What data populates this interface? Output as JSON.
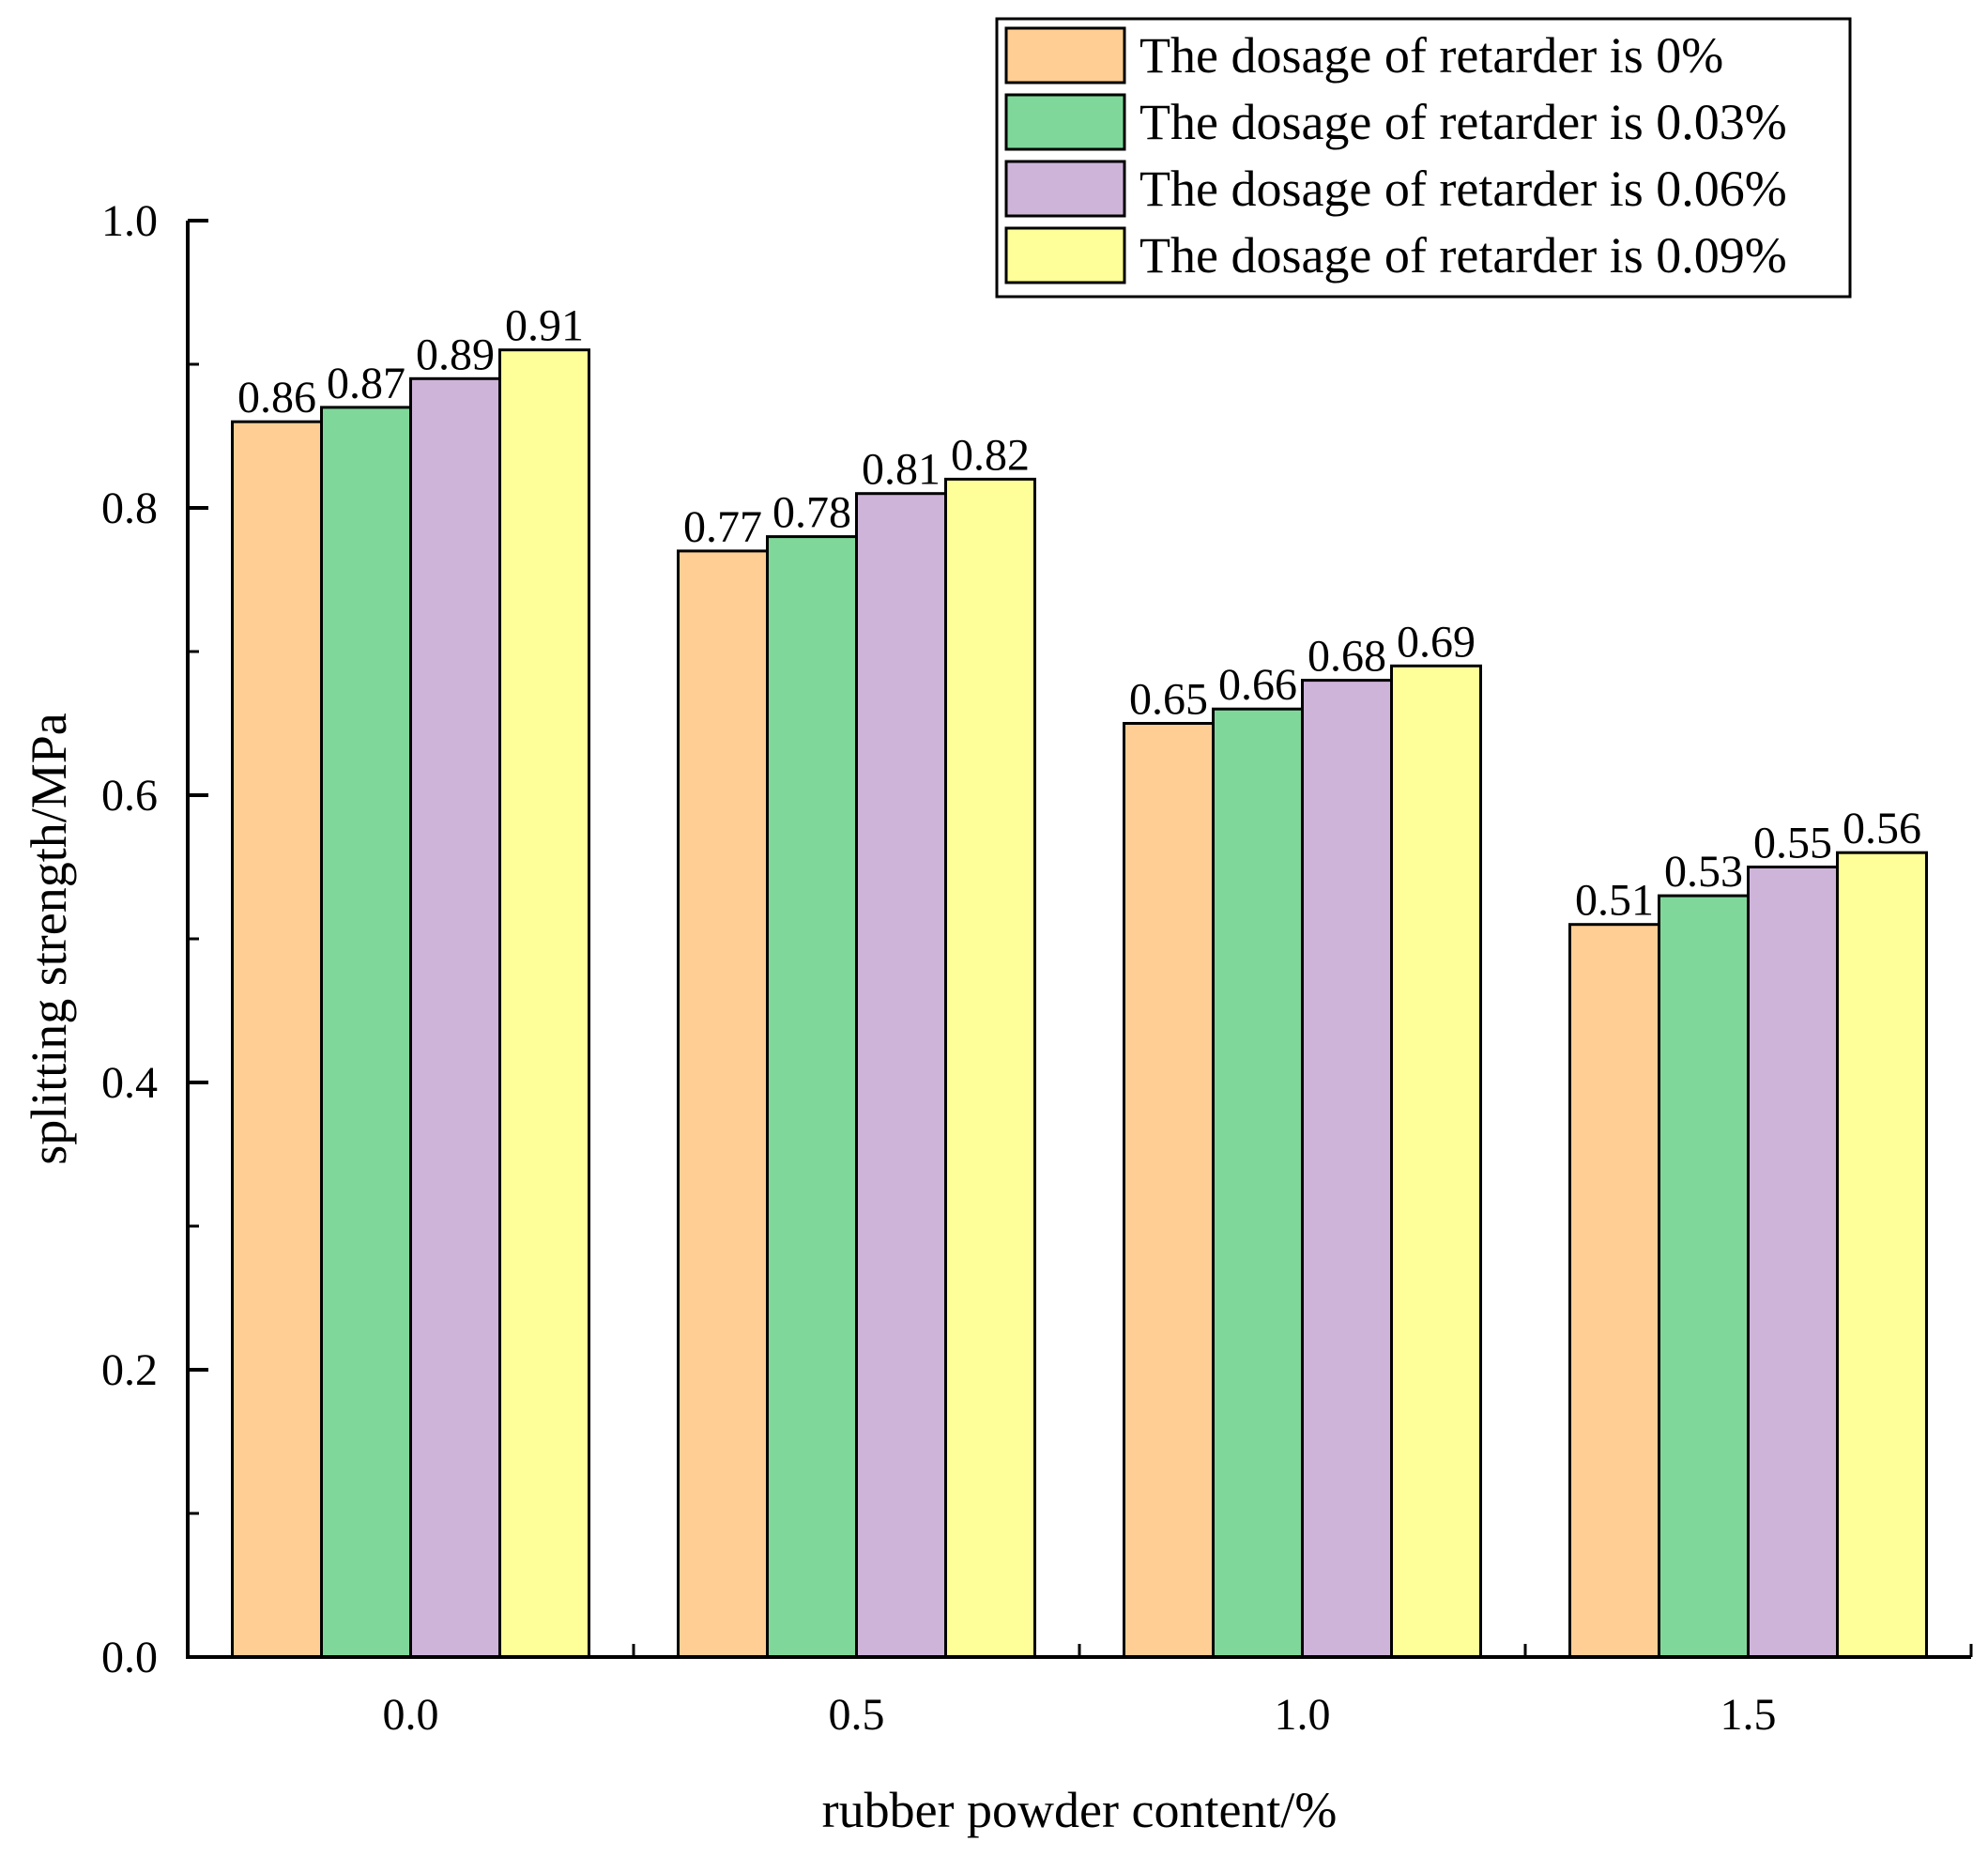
{
  "chart_data": {
    "type": "bar",
    "title": "",
    "xlabel": "rubber powder content/%",
    "ylabel": "splitting strength/MPa",
    "categories": [
      "0.0",
      "0.5",
      "1.0",
      "1.5"
    ],
    "ylim": [
      0,
      1.0
    ],
    "yticks": [
      "0.0",
      "0.2",
      "0.4",
      "0.6",
      "0.8",
      "1.0"
    ],
    "grid": false,
    "legend_position": "top-right",
    "series": [
      {
        "name": "The dosage of retarder is 0%",
        "color": "#FFCE94",
        "values": [
          0.86,
          0.77,
          0.65,
          0.51
        ],
        "labels": [
          "0.86",
          "0.77",
          "0.65",
          "0.51"
        ]
      },
      {
        "name": "The dosage of retarder is 0.03%",
        "color": "#7FD89A",
        "values": [
          0.87,
          0.78,
          0.66,
          0.53
        ],
        "labels": [
          "0.87",
          "0.78",
          "0.66",
          "0.53"
        ]
      },
      {
        "name": "The dosage of retarder is 0.06%",
        "color": "#CFB4DA",
        "values": [
          0.89,
          0.81,
          0.68,
          0.55
        ],
        "labels": [
          "0.89",
          "0.81",
          "0.68",
          "0.55"
        ]
      },
      {
        "name": "The dosage of retarder is 0.09%",
        "color": "#FFFF99",
        "values": [
          0.91,
          0.82,
          0.69,
          0.56
        ],
        "labels": [
          "0.91",
          "0.82",
          "0.69",
          "0.56"
        ]
      }
    ]
  }
}
